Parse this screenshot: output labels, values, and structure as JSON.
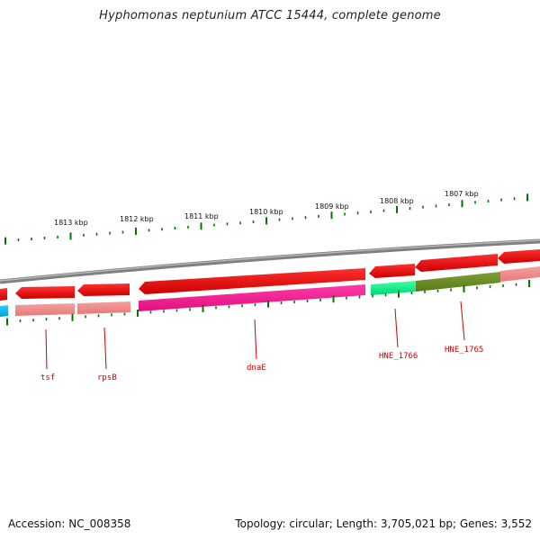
{
  "title": "Hyphomonas neptunium ATCC 15444, complete genome",
  "footer": {
    "accession": "Accession: NC_008358",
    "stats": "Topology: circular; Length: 3,705,021 bp; Genes: 3,552"
  },
  "kbp_labels": [
    "1813 kbp",
    "1812 kbp",
    "1811 kbp",
    "1810 kbp",
    "1809 kbp",
    "1808 kbp",
    "1807 kbp"
  ],
  "gene_labels": [
    "tsf",
    "rpsB",
    "dnaE",
    "HNE_1766",
    "HNE_1765"
  ],
  "colors": {
    "backbone": "#808080",
    "forward_strand": "#ee0000",
    "reverse_default": "#f08080",
    "dnaE": "#ee1493",
    "HNE_1766": "#00ee88",
    "HNE_1765": "#6b8e23",
    "left_partial": "#00bfff",
    "tick": "#007700",
    "gene_label": "#cc0000"
  }
}
